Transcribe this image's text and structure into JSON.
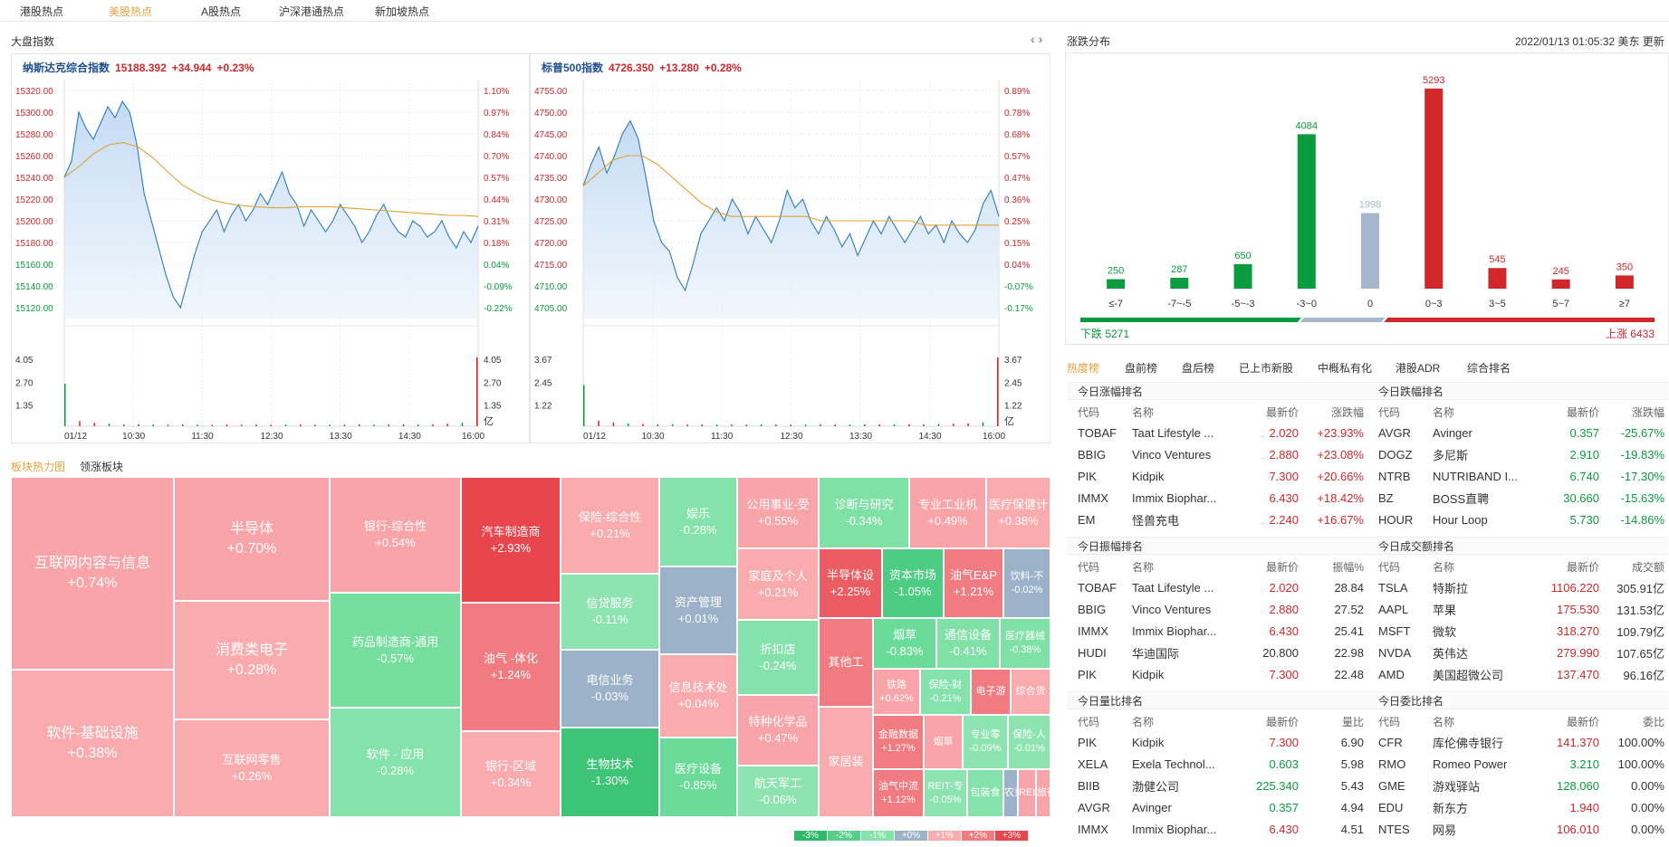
{
  "tabs": [
    {
      "label": "港股热点",
      "active": false
    },
    {
      "label": "美股热点",
      "active": true
    },
    {
      "label": "A股热点",
      "active": false
    },
    {
      "label": "沪深港通热点",
      "active": false
    },
    {
      "label": "新加坡热点",
      "active": false
    }
  ],
  "index_section_title": "大盘指数",
  "chart_data": [
    {
      "type": "line",
      "title": "纳斯达克综合指数",
      "price": "15188.392",
      "change": "+34.944",
      "change_pct": "+0.23%",
      "prev_close": 15153.4,
      "y_ticks": [
        "15320.00",
        "15300.00",
        "15280.00",
        "15260.00",
        "15240.00",
        "15220.00",
        "15200.00",
        "15180.00",
        "15160.00",
        "15140.00",
        "15120.00"
      ],
      "y_tick_colors": [
        "up",
        "up",
        "up",
        "up",
        "up",
        "up",
        "up",
        "up",
        "dn",
        "dn",
        "dn"
      ],
      "pct_ticks": [
        "1.10%",
        "0.97%",
        "0.84%",
        "0.70%",
        "0.57%",
        "0.44%",
        "0.31%",
        "0.18%",
        "0.04%",
        "-0.09%",
        "-0.22%"
      ],
      "ylim": [
        15110,
        15330
      ],
      "x_ticks": [
        "01/12",
        "10:30",
        "11:30",
        "12:30",
        "13:30",
        "14:30",
        "16:00"
      ],
      "vol_ticks": [
        "4.05",
        "2.70",
        "1.35"
      ],
      "vol_unit": "亿",
      "price_series": [
        15240,
        15255,
        15300,
        15285,
        15275,
        15290,
        15305,
        15295,
        15310,
        15300,
        15270,
        15225,
        15200,
        15175,
        15150,
        15130,
        15120,
        15145,
        15170,
        15190,
        15200,
        15210,
        15190,
        15205,
        15215,
        15200,
        15210,
        15225,
        15215,
        15230,
        15245,
        15225,
        15215,
        15195,
        15210,
        15200,
        15190,
        15200,
        15215,
        15205,
        15195,
        15180,
        15190,
        15205,
        15215,
        15200,
        15190,
        15185,
        15200,
        15195,
        15185,
        15190,
        15200,
        15185,
        15175,
        15190,
        15180,
        15195
      ],
      "avg_series": [
        15240,
        15250,
        15262,
        15270,
        15272,
        15268,
        15258,
        15245,
        15233,
        15225,
        15219,
        15216,
        15214,
        15213,
        15212,
        15212,
        15213,
        15213,
        15213,
        15212,
        15211,
        15210,
        15209,
        15208,
        15207,
        15206,
        15205,
        15205,
        15204
      ],
      "volume_series": [
        2.5,
        0.3,
        0.2,
        0.15,
        0.1,
        0.12,
        0.1,
        0.08,
        0.1,
        0.09,
        0.08,
        0.1,
        0.09,
        0.1,
        0.08,
        0.09,
        0.1,
        0.09,
        0.08,
        0.09,
        0.1,
        0.09,
        0.1,
        0.11,
        0.1,
        0.12,
        0.14,
        0.2,
        4.05
      ]
    },
    {
      "type": "line",
      "title": "标普500指数",
      "price": "4726.350",
      "change": "+13.280",
      "change_pct": "+0.28%",
      "prev_close": 4713.07,
      "y_ticks": [
        "4755.00",
        "4750.00",
        "4745.00",
        "4740.00",
        "4735.00",
        "4730.00",
        "4725.00",
        "4720.00",
        "4715.00",
        "4710.00",
        "4705.00"
      ],
      "y_tick_colors": [
        "up",
        "up",
        "up",
        "up",
        "up",
        "up",
        "up",
        "up",
        "up",
        "dn",
        "dn"
      ],
      "pct_ticks": [
        "0.89%",
        "0.78%",
        "0.68%",
        "0.57%",
        "0.47%",
        "0.36%",
        "0.25%",
        "0.15%",
        "0.04%",
        "-0.07%",
        "-0.17%"
      ],
      "ylim": [
        4702.5,
        4757.5
      ],
      "x_ticks": [
        "01/12",
        "10:30",
        "11:30",
        "12:30",
        "13:30",
        "14:30",
        "16:00"
      ],
      "vol_ticks": [
        "3.67",
        "2.45",
        "1.22"
      ],
      "vol_unit": "亿",
      "price_series": [
        4733,
        4738,
        4742,
        4736,
        4740,
        4745,
        4748,
        4744,
        4735,
        4725,
        4720,
        4718,
        4712,
        4709,
        4715,
        4722,
        4725,
        4728,
        4725,
        4730,
        4727,
        4722,
        4726,
        4723,
        4720,
        4725,
        4732,
        4728,
        4730,
        4725,
        4722,
        4726,
        4723,
        4719,
        4722,
        4717,
        4721,
        4725,
        4722,
        4726,
        4723,
        4720,
        4723,
        4726,
        4722,
        4724,
        4720,
        4725,
        4722,
        4720,
        4723,
        4729,
        4732,
        4726
      ],
      "avg_series": [
        4733,
        4736,
        4739,
        4740,
        4740,
        4738,
        4735,
        4732,
        4729,
        4727,
        4726,
        4726,
        4726,
        4726,
        4726,
        4726,
        4725,
        4725,
        4725,
        4725,
        4725,
        4725,
        4725,
        4724,
        4724,
        4724,
        4724,
        4724,
        4724
      ],
      "volume_series": [
        2.2,
        0.3,
        0.2,
        0.15,
        0.12,
        0.1,
        0.1,
        0.09,
        0.1,
        0.08,
        0.09,
        0.08,
        0.1,
        0.09,
        0.08,
        0.09,
        0.1,
        0.09,
        0.08,
        0.1,
        0.09,
        0.1,
        0.11,
        0.1,
        0.12,
        0.13,
        0.15,
        0.2,
        3.67
      ]
    },
    {
      "type": "bar",
      "title": "",
      "categories": [
        "≤-7",
        "-7~-5",
        "-5~-3",
        "-3~0",
        "0",
        "0~3",
        "3~5",
        "5~7",
        "≥7"
      ],
      "values": [
        250,
        287,
        650,
        4084,
        1998,
        5293,
        545,
        245,
        350
      ],
      "colors": [
        "#0a9b3e",
        "#0a9b3e",
        "#0a9b3e",
        "#0a9b3e",
        "#a6b7cd",
        "#d0272b",
        "#d0272b",
        "#d0272b",
        "#d0272b"
      ],
      "ylim": [
        0,
        5600
      ],
      "down_label": "下跌 5271",
      "up_label": "上涨 6433",
      "down_count": 5271,
      "flat_count": 1998,
      "up_count": 6433
    }
  ],
  "distribution": {
    "title": "涨跌分布",
    "datetime": "2022/01/13 01:05:32 美东",
    "update": "更新"
  },
  "sector": {
    "tabs": [
      {
        "label": "板块热力图",
        "active": true
      },
      {
        "label": "领涨板块",
        "active": false
      }
    ],
    "tiles": [
      {
        "name": "互联网内容与信息",
        "pct": "+0.74%",
        "color": "#f8a4a8",
        "big": true
      },
      {
        "name": "软件-基础设施",
        "pct": "+0.38%",
        "color": "#f9abae",
        "big": true
      },
      {
        "name": "半导体",
        "pct": "+0.70%",
        "color": "#f8a4a8",
        "big": true
      },
      {
        "name": "消费类电子",
        "pct": "+0.28%",
        "color": "#f9abae",
        "big": true
      },
      {
        "name": "互联网零售",
        "pct": "+0.26%",
        "color": "#f9abae"
      },
      {
        "name": "银行-综合性",
        "pct": "+0.54%",
        "color": "#f8a4a8"
      },
      {
        "name": "药品制造商-通用",
        "pct": "-0.57%",
        "color": "#76dfa0"
      },
      {
        "name": "软件 - 应用",
        "pct": "-0.28%",
        "color": "#84e3aa"
      },
      {
        "name": "汽车制造商",
        "pct": "+2.93%",
        "color": "#e8454d"
      },
      {
        "name": "油气 -体化",
        "pct": "+1.24%",
        "color": "#f07b80"
      },
      {
        "name": "银行-区域",
        "pct": "+0.34%",
        "color": "#f9abae"
      },
      {
        "name": "保险-综合性",
        "pct": "+0.21%",
        "color": "#f9abae"
      },
      {
        "name": "信贷服务",
        "pct": "-0.11%",
        "color": "#8de4b0"
      },
      {
        "name": "电信业务",
        "pct": "-0.03%",
        "color": "#9bb2c8"
      },
      {
        "name": "生物技术",
        "pct": "-1.30%",
        "color": "#3ec476"
      },
      {
        "name": "娱乐",
        "pct": "-0.28%",
        "color": "#84e3aa"
      },
      {
        "name": "资产管理",
        "pct": "+0.01%",
        "color": "#9bb2c8"
      },
      {
        "name": "信息技术处",
        "pct": "+0.04%",
        "color": "#f9abae"
      },
      {
        "name": "医疗设备",
        "pct": "-0.85%",
        "color": "#6adb98"
      },
      {
        "name": "公用事业-受",
        "pct": "+0.55%",
        "color": "#f8a4a8"
      },
      {
        "name": "家庭及个人",
        "pct": "+0.21%",
        "color": "#f9abae"
      },
      {
        "name": "折扣店",
        "pct": "-0.24%",
        "color": "#84e3aa"
      },
      {
        "name": "特种化学品",
        "pct": "+0.47%",
        "color": "#f8a4a8"
      },
      {
        "name": "航天军工",
        "pct": "-0.06%",
        "color": "#8de4b0"
      },
      {
        "name": "诊断与研究",
        "pct": "-0.34%",
        "color": "#7fe1a6"
      },
      {
        "name": "专业工业机",
        "pct": "+0.49%",
        "color": "#f8a4a8"
      },
      {
        "name": "医疗保健计",
        "pct": "+0.38%",
        "color": "#f9abae"
      },
      {
        "name": "半导体设",
        "pct": "+2.25%",
        "color": "#eb5d63"
      },
      {
        "name": "资本市场",
        "pct": "-1.05%",
        "color": "#4dcc84"
      },
      {
        "name": "油气E&P",
        "pct": "+1.21%",
        "color": "#f07b80"
      },
      {
        "name": "饮料-不",
        "pct": "-0.02%",
        "color": "#9bb2c8"
      },
      {
        "name": "其他工",
        "pct": "",
        "color": "#f07b80"
      },
      {
        "name": "烟草",
        "pct": "-0.83%",
        "color": "#6adb98"
      },
      {
        "name": "通信设备",
        "pct": "-0.41%",
        "color": "#7fe1a6"
      },
      {
        "name": "医疗器械",
        "pct": "-0.38%",
        "color": "#7fe1a6"
      },
      {
        "name": "家居装",
        "pct": "",
        "color": "#f9abae"
      },
      {
        "name": "铁路",
        "pct": "+0.62%",
        "color": "#f8a4a8"
      },
      {
        "name": "保险-财",
        "pct": "-0.21%",
        "color": "#84e3aa"
      },
      {
        "name": "电子游",
        "pct": "",
        "color": "#f07b80"
      },
      {
        "name": "综合货",
        "pct": "",
        "color": "#f9abae"
      },
      {
        "name": "金融数据",
        "pct": "+1.27%",
        "color": "#f07b80"
      },
      {
        "name": "烟草",
        "pct": "",
        "color": "#f8a4a8"
      },
      {
        "name": "专业零",
        "pct": "-0.09%",
        "color": "#8de4b0"
      },
      {
        "name": "保险-人",
        "pct": "-0.01%",
        "color": "#8de4b0"
      },
      {
        "name": "油气中流",
        "pct": "+1.12%",
        "color": "#f07b80"
      },
      {
        "name": "REIT-专",
        "pct": "-0.05%",
        "color": "#8de4b0"
      },
      {
        "name": "包装食",
        "pct": "",
        "color": "#84e3aa"
      },
      {
        "name": "农重",
        "pct": "",
        "color": "#9bb2c8"
      },
      {
        "name": "REI",
        "pct": "",
        "color": "#f8a4a8"
      },
      {
        "name": "旅行",
        "pct": "",
        "color": "#f8a4a8"
      }
    ],
    "legend": [
      {
        "label": "-3%",
        "color": "#2fb96a"
      },
      {
        "label": "-2%",
        "color": "#57cf8b"
      },
      {
        "label": "-1%",
        "color": "#84e3aa"
      },
      {
        "label": "+0%",
        "color": "#9bb2c8"
      },
      {
        "label": "+1%",
        "color": "#f9abae"
      },
      {
        "label": "+2%",
        "color": "#f07b80"
      },
      {
        "label": "+3%",
        "color": "#e8454d"
      }
    ]
  },
  "rank_tabs": [
    {
      "label": "热度榜",
      "active": true
    },
    {
      "label": "盘前榜",
      "active": false
    },
    {
      "label": "盘后榜",
      "active": false
    },
    {
      "label": "已上市新股",
      "active": false
    },
    {
      "label": "中概私有化",
      "active": false
    },
    {
      "label": "港股ADR",
      "active": false
    },
    {
      "label": "综合排名",
      "active": false
    }
  ],
  "boxes": [
    {
      "title": "今日涨幅排名",
      "cols": [
        "代码",
        "名称",
        "最新价",
        "涨跌幅"
      ],
      "rows": [
        [
          "TOBAF",
          "Taat Lifestyle ...",
          "2.020",
          "+23.93%",
          "up",
          "up"
        ],
        [
          "BBIG",
          "Vinco Ventures",
          "2.880",
          "+23.08%",
          "up",
          "up"
        ],
        [
          "PIK",
          "Kidpik",
          "7.300",
          "+20.66%",
          "up",
          "up"
        ],
        [
          "IMMX",
          "Immix Biophar...",
          "6.430",
          "+18.42%",
          "up",
          "up"
        ],
        [
          "EM",
          "怪兽充电",
          "2.240",
          "+16.67%",
          "up",
          "up"
        ]
      ]
    },
    {
      "title": "今日跌幅排名",
      "cols": [
        "代码",
        "名称",
        "最新价",
        "涨跌幅"
      ],
      "rows": [
        [
          "AVGR",
          "Avinger",
          "0.357",
          "-25.67%",
          "dn",
          "dn"
        ],
        [
          "DOGZ",
          "多尼斯",
          "2.910",
          "-19.83%",
          "dn",
          "dn"
        ],
        [
          "NTRB",
          "NUTRIBAND I...",
          "6.740",
          "-17.30%",
          "dn",
          "dn"
        ],
        [
          "BZ",
          "BOSS直聘",
          "30.660",
          "-15.63%",
          "dn",
          "dn"
        ],
        [
          "HOUR",
          "Hour Loop",
          "5.730",
          "-14.86%",
          "dn",
          "dn"
        ]
      ]
    },
    {
      "title": "今日振幅排名",
      "cols": [
        "代码",
        "名称",
        "最新价",
        "振幅%"
      ],
      "rows": [
        [
          "TOBAF",
          "Taat Lifestyle ...",
          "2.020",
          "28.84",
          "up",
          ""
        ],
        [
          "BBIG",
          "Vinco Ventures",
          "2.880",
          "27.52",
          "up",
          ""
        ],
        [
          "IMMX",
          "Immix Biophar...",
          "6.430",
          "25.41",
          "up",
          ""
        ],
        [
          "HUDI",
          "华迪国际",
          "20.800",
          "22.98",
          "",
          ""
        ],
        [
          "PIK",
          "Kidpik",
          "7.300",
          "22.48",
          "up",
          ""
        ]
      ]
    },
    {
      "title": "今日成交额排名",
      "cols": [
        "代码",
        "名称",
        "最新价",
        "成交额"
      ],
      "rows": [
        [
          "TSLA",
          "特斯拉",
          "1106.220",
          "305.91亿",
          "up",
          ""
        ],
        [
          "AAPL",
          "苹果",
          "175.530",
          "131.53亿",
          "up",
          ""
        ],
        [
          "MSFT",
          "微软",
          "318.270",
          "109.79亿",
          "up",
          ""
        ],
        [
          "NVDA",
          "英伟达",
          "279.990",
          "107.65亿",
          "up",
          ""
        ],
        [
          "AMD",
          "美国超微公司",
          "137.470",
          "96.16亿",
          "up",
          ""
        ]
      ]
    },
    {
      "title": "今日量比排名",
      "cols": [
        "代码",
        "名称",
        "最新价",
        "量比"
      ],
      "rows": [
        [
          "PIK",
          "Kidpik",
          "7.300",
          "6.90",
          "up",
          ""
        ],
        [
          "XELA",
          "Exela Technol...",
          "0.603",
          "5.98",
          "dn",
          ""
        ],
        [
          "BIIB",
          "渤健公司",
          "225.340",
          "5.43",
          "dn",
          ""
        ],
        [
          "AVGR",
          "Avinger",
          "0.357",
          "4.94",
          "dn",
          ""
        ],
        [
          "IMMX",
          "Immix Biophar...",
          "6.430",
          "4.51",
          "up",
          ""
        ]
      ]
    },
    {
      "title": "今日委比排名",
      "cols": [
        "代码",
        "名称",
        "最新价",
        "委比"
      ],
      "rows": [
        [
          "CFR",
          "库伦佛寺银行",
          "141.370",
          "100.00%",
          "up",
          ""
        ],
        [
          "RMO",
          "Romeo Power",
          "3.210",
          "100.00%",
          "dn",
          ""
        ],
        [
          "GME",
          "游戏驿站",
          "128.060",
          "0.00%",
          "dn",
          ""
        ],
        [
          "EDU",
          "新东方",
          "1.940",
          "0.00%",
          "up",
          ""
        ],
        [
          "NTES",
          "网易",
          "106.010",
          "0.00%",
          "up",
          ""
        ]
      ]
    }
  ]
}
